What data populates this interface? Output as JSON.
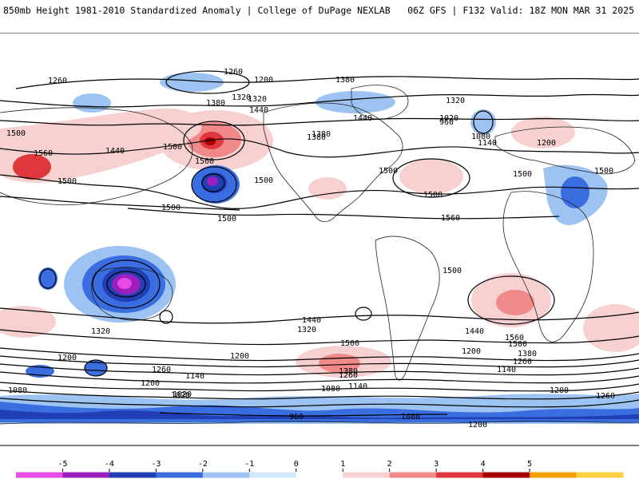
{
  "header": {
    "left_title": "850mb Height 1981-2010 Standardized Anomaly | College of DuPage NEXLAB",
    "right_title": "06Z GFS | F132 Valid: 18Z MON MAR 31 2025"
  },
  "colorbar": {
    "ticks": [
      "-5",
      "-4",
      "-3",
      "-2",
      "-1",
      "0",
      "1",
      "2",
      "3",
      "4",
      "5"
    ],
    "colors": [
      "#e64be6",
      "#9b1fbf",
      "#1f3fb3",
      "#3a6ee0",
      "#9cc3f2",
      "#d6e8fb",
      "#ffffff",
      "#f7d0d0",
      "#f08a8a",
      "#e0373c",
      "#a80000",
      "#f5a000",
      "#ffd040"
    ]
  },
  "contour_labels": [
    "1260",
    "1200",
    "1320",
    "1380",
    "1440",
    "1500",
    "1560",
    "1500",
    "1440",
    "1380",
    "1320",
    "1260",
    "1200",
    "1140",
    "1080",
    "1020",
    "960",
    "1500",
    "1560",
    "1500",
    "1500",
    "1500",
    "1380",
    "1320",
    "1380",
    "1440",
    "1500",
    "1500",
    "1560",
    "1500",
    "1500",
    "1500",
    "1440",
    "1560",
    "1500",
    "1380",
    "1260",
    "1200",
    "1140",
    "1080",
    "1020",
    "1200",
    "1260",
    "1320",
    "1440",
    "1500",
    "1380",
    "1320",
    "1200",
    "1260",
    "1140",
    "1200",
    "1080",
    "1020",
    "1140",
    "1260",
    "1200",
    "1080",
    "1200",
    "960"
  ],
  "map_style": {
    "land_line": "#222222",
    "contour_line": "#000000",
    "background": "#ffffff"
  }
}
